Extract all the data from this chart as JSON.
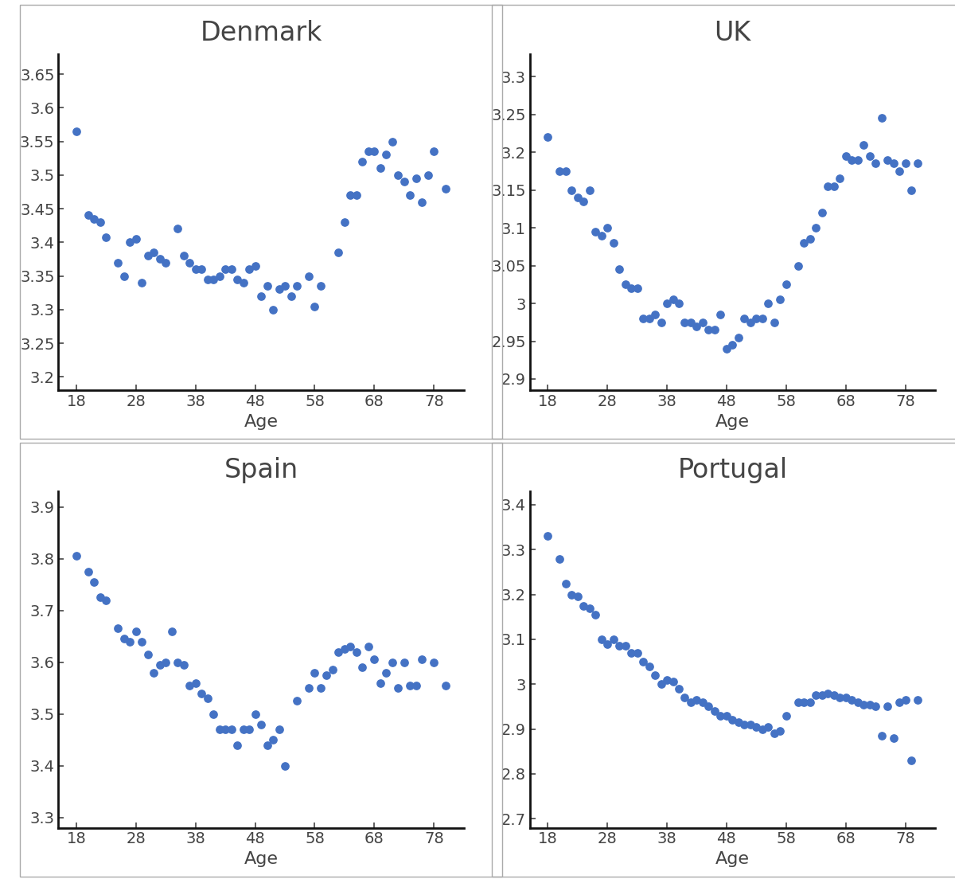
{
  "subplots": [
    {
      "title": "Denmark",
      "xlabel": "Age",
      "xlim": [
        15,
        83
      ],
      "ylim": [
        3.18,
        3.68
      ],
      "yticks": [
        3.2,
        3.25,
        3.3,
        3.35,
        3.4,
        3.45,
        3.5,
        3.55,
        3.6,
        3.65
      ],
      "xticks": [
        18,
        28,
        38,
        48,
        58,
        68,
        78
      ],
      "x": [
        18,
        20,
        21,
        22,
        23,
        25,
        26,
        27,
        28,
        29,
        30,
        31,
        32,
        33,
        35,
        36,
        37,
        38,
        39,
        40,
        41,
        42,
        43,
        44,
        45,
        46,
        47,
        48,
        49,
        50,
        51,
        52,
        53,
        54,
        55,
        57,
        58,
        59,
        62,
        63,
        64,
        65,
        66,
        67,
        68,
        69,
        70,
        71,
        72,
        73,
        74,
        75,
        76,
        77,
        78,
        80
      ],
      "y": [
        3.565,
        3.44,
        3.435,
        3.43,
        3.408,
        3.37,
        3.35,
        3.4,
        3.405,
        3.34,
        3.38,
        3.385,
        3.375,
        3.37,
        3.42,
        3.38,
        3.37,
        3.36,
        3.36,
        3.345,
        3.345,
        3.35,
        3.36,
        3.36,
        3.345,
        3.34,
        3.36,
        3.365,
        3.32,
        3.335,
        3.3,
        3.33,
        3.335,
        3.32,
        3.335,
        3.35,
        3.305,
        3.335,
        3.385,
        3.43,
        3.47,
        3.47,
        3.52,
        3.535,
        3.535,
        3.51,
        3.53,
        3.55,
        3.5,
        3.49,
        3.47,
        3.495,
        3.46,
        3.5,
        3.535,
        3.48
      ]
    },
    {
      "title": "UK",
      "xlabel": "Age",
      "xlim": [
        15,
        83
      ],
      "ylim": [
        2.885,
        3.33
      ],
      "yticks": [
        2.9,
        2.95,
        3.0,
        3.05,
        3.1,
        3.15,
        3.2,
        3.25,
        3.3
      ],
      "xticks": [
        18,
        28,
        38,
        48,
        58,
        68,
        78
      ],
      "x": [
        18,
        20,
        21,
        22,
        23,
        24,
        25,
        26,
        27,
        28,
        29,
        30,
        31,
        32,
        33,
        34,
        35,
        36,
        37,
        38,
        39,
        40,
        41,
        42,
        43,
        44,
        45,
        46,
        47,
        48,
        49,
        50,
        51,
        52,
        53,
        54,
        55,
        56,
        57,
        58,
        60,
        61,
        62,
        63,
        64,
        65,
        66,
        67,
        68,
        69,
        70,
        71,
        72,
        73,
        74,
        75,
        76,
        77,
        78,
        79,
        80
      ],
      "y": [
        3.22,
        3.175,
        3.175,
        3.15,
        3.14,
        3.135,
        3.15,
        3.095,
        3.09,
        3.1,
        3.08,
        3.045,
        3.025,
        3.02,
        3.02,
        2.98,
        2.98,
        2.985,
        2.975,
        3.0,
        3.005,
        3.0,
        2.975,
        2.975,
        2.97,
        2.975,
        2.965,
        2.965,
        2.985,
        2.94,
        2.945,
        2.955,
        2.98,
        2.975,
        2.98,
        2.98,
        3.0,
        2.975,
        3.005,
        3.025,
        3.05,
        3.08,
        3.085,
        3.1,
        3.12,
        3.155,
        3.155,
        3.165,
        3.195,
        3.19,
        3.19,
        3.21,
        3.195,
        3.185,
        3.245,
        3.19,
        3.185,
        3.175,
        3.185,
        3.15,
        3.185
      ]
    },
    {
      "title": "Spain",
      "xlabel": "Age",
      "xlim": [
        15,
        83
      ],
      "ylim": [
        3.28,
        3.93
      ],
      "yticks": [
        3.3,
        3.4,
        3.5,
        3.6,
        3.7,
        3.8,
        3.9
      ],
      "xticks": [
        18,
        28,
        38,
        48,
        58,
        68,
        78
      ],
      "x": [
        18,
        20,
        21,
        22,
        23,
        25,
        26,
        27,
        28,
        29,
        30,
        31,
        32,
        33,
        34,
        35,
        36,
        37,
        38,
        39,
        40,
        41,
        42,
        43,
        44,
        45,
        46,
        47,
        48,
        49,
        50,
        51,
        52,
        53,
        55,
        57,
        58,
        59,
        60,
        61,
        62,
        63,
        64,
        65,
        66,
        67,
        68,
        69,
        70,
        71,
        72,
        73,
        74,
        75,
        76,
        78,
        80
      ],
      "y": [
        3.805,
        3.775,
        3.755,
        3.725,
        3.72,
        3.665,
        3.645,
        3.64,
        3.66,
        3.64,
        3.615,
        3.58,
        3.595,
        3.6,
        3.66,
        3.6,
        3.595,
        3.555,
        3.56,
        3.54,
        3.53,
        3.5,
        3.47,
        3.47,
        3.47,
        3.44,
        3.47,
        3.47,
        3.5,
        3.48,
        3.44,
        3.45,
        3.47,
        3.4,
        3.525,
        3.55,
        3.58,
        3.55,
        3.575,
        3.585,
        3.62,
        3.625,
        3.63,
        3.62,
        3.59,
        3.63,
        3.605,
        3.56,
        3.58,
        3.6,
        3.55,
        3.6,
        3.555,
        3.555,
        3.605,
        3.6,
        3.555
      ]
    },
    {
      "title": "Portugal",
      "xlabel": "Age",
      "xlim": [
        15,
        83
      ],
      "ylim": [
        2.68,
        3.43
      ],
      "yticks": [
        2.7,
        2.8,
        2.9,
        3.0,
        3.1,
        3.2,
        3.3,
        3.4
      ],
      "xticks": [
        18,
        28,
        38,
        48,
        58,
        68,
        78
      ],
      "x": [
        18,
        20,
        21,
        22,
        23,
        24,
        25,
        26,
        27,
        28,
        29,
        30,
        31,
        32,
        33,
        34,
        35,
        36,
        37,
        38,
        39,
        40,
        41,
        42,
        43,
        44,
        45,
        46,
        47,
        48,
        49,
        50,
        51,
        52,
        53,
        54,
        55,
        56,
        57,
        58,
        60,
        61,
        62,
        63,
        64,
        65,
        66,
        67,
        68,
        69,
        70,
        71,
        72,
        73,
        74,
        75,
        76,
        77,
        78,
        79,
        80
      ],
      "y": [
        3.33,
        3.28,
        3.225,
        3.2,
        3.195,
        3.175,
        3.17,
        3.155,
        3.1,
        3.09,
        3.1,
        3.085,
        3.085,
        3.07,
        3.07,
        3.05,
        3.04,
        3.02,
        3.0,
        3.01,
        3.005,
        2.99,
        2.97,
        2.96,
        2.965,
        2.96,
        2.95,
        2.94,
        2.93,
        2.93,
        2.92,
        2.915,
        2.91,
        2.91,
        2.905,
        2.9,
        2.905,
        2.89,
        2.895,
        2.93,
        2.96,
        2.96,
        2.96,
        2.975,
        2.975,
        2.98,
        2.975,
        2.97,
        2.97,
        2.965,
        2.96,
        2.955,
        2.955,
        2.95,
        2.885,
        2.95,
        2.88,
        2.96,
        2.965,
        2.83,
        2.965
      ]
    }
  ],
  "dot_color": "#4472C4",
  "dot_size": 45,
  "background_color": "#ffffff",
  "title_fontsize": 24,
  "tick_fontsize": 14,
  "xlabel_fontsize": 16,
  "spine_color": "#111111",
  "spine_linewidth": 2.0,
  "panel_border_color": "#aaaaaa",
  "panel_border_linewidth": 1.0
}
